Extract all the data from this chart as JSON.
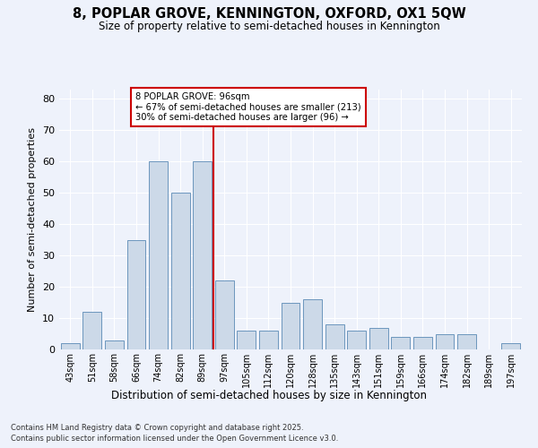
{
  "title": "8, POPLAR GROVE, KENNINGTON, OXFORD, OX1 5QW",
  "subtitle": "Size of property relative to semi-detached houses in Kennington",
  "xlabel": "Distribution of semi-detached houses by size in Kennington",
  "ylabel": "Number of semi-detached properties",
  "categories": [
    "43sqm",
    "51sqm",
    "58sqm",
    "66sqm",
    "74sqm",
    "82sqm",
    "89sqm",
    "97sqm",
    "105sqm",
    "112sqm",
    "120sqm",
    "128sqm",
    "135sqm",
    "143sqm",
    "151sqm",
    "159sqm",
    "166sqm",
    "174sqm",
    "182sqm",
    "189sqm",
    "197sqm"
  ],
  "values": [
    2,
    12,
    3,
    35,
    60,
    50,
    60,
    22,
    6,
    6,
    15,
    16,
    8,
    6,
    7,
    4,
    4,
    5,
    5,
    0,
    2
  ],
  "bar_color": "#ccd9e8",
  "bar_edge_color": "#5a8ab5",
  "background_color": "#eef2fb",
  "grid_color": "#ffffff",
  "vline_color": "#cc0000",
  "annotation_title": "8 POPLAR GROVE: 96sqm",
  "annotation_line1": "← 67% of semi-detached houses are smaller (213)",
  "annotation_line2": "30% of semi-detached houses are larger (96) →",
  "annotation_box_color": "#ffffff",
  "annotation_box_edge": "#cc0000",
  "ylim": [
    0,
    83
  ],
  "yticks": [
    0,
    10,
    20,
    30,
    40,
    50,
    60,
    70,
    80
  ],
  "footnote1": "Contains HM Land Registry data © Crown copyright and database right 2025.",
  "footnote2": "Contains public sector information licensed under the Open Government Licence v3.0."
}
